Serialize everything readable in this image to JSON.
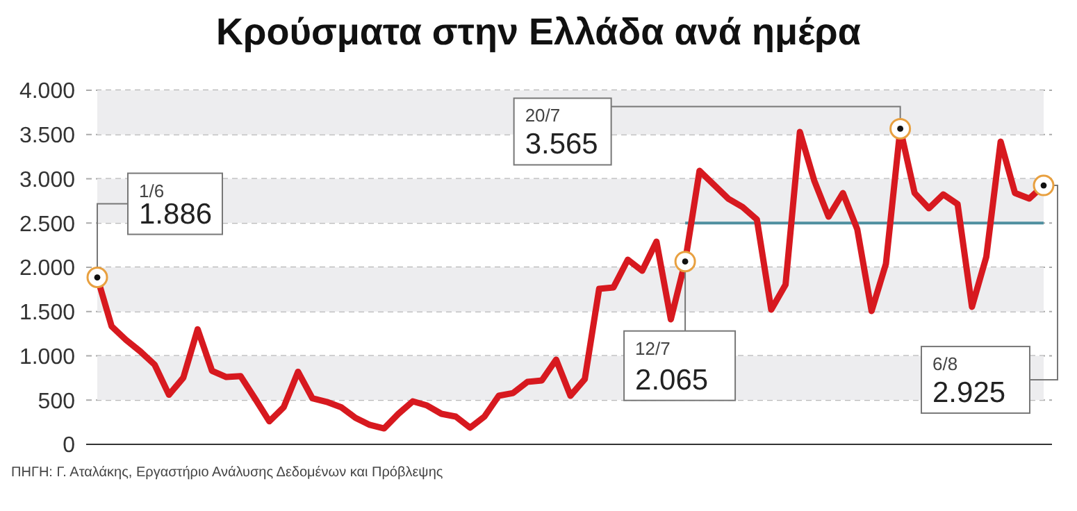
{
  "chart_data": {
    "type": "line",
    "title": "Κρούσματα στην Ελλάδα ανά ημέρα",
    "categories": [
      null,
      null,
      null,
      null,
      null,
      null,
      null,
      null,
      null,
      null,
      null,
      null,
      null,
      null,
      null,
      null,
      null,
      null,
      null,
      null,
      null,
      null,
      null,
      null,
      null,
      null,
      null,
      null,
      null,
      null,
      null,
      null,
      null,
      null,
      null,
      null,
      null,
      null,
      null,
      null,
      null,
      null,
      null,
      null,
      null,
      null,
      null,
      null,
      null,
      null,
      null,
      null,
      null,
      null,
      null,
      null,
      null,
      null,
      null,
      null,
      null,
      null,
      null,
      null,
      null,
      null,
      null
    ],
    "series": [
      {
        "color": "#d7191f",
        "values": [
          1886,
          1333,
          1180,
          1050,
          900,
          560,
          753,
          1300,
          831,
          760,
          770,
          518,
          260,
          420,
          820,
          520,
          480,
          420,
          300,
          220,
          180,
          345,
          486,
          439,
          345,
          314,
          188,
          314,
          549,
          580,
          706,
          722,
          957,
          549,
          737,
          1757,
          1773,
          2086,
          1961,
          2290,
          1412,
          2065,
          3090,
          2933,
          2776,
          2682,
          2541,
          1522,
          1804,
          3529,
          2980,
          2572,
          2839,
          2431,
          1506,
          2039,
          3565,
          2839,
          2666,
          2823,
          2713,
          1553,
          2117,
          3420,
          2839,
          2776,
          2925
        ],
        "value_labels": [
          "1.886",
          null,
          null,
          null,
          null,
          null,
          null,
          null,
          null,
          null,
          null,
          null,
          null,
          null,
          null,
          null,
          null,
          null,
          null,
          null,
          null,
          null,
          null,
          null,
          null,
          null,
          null,
          null,
          null,
          null,
          null,
          null,
          null,
          null,
          null,
          null,
          null,
          null,
          null,
          null,
          null,
          "2.065",
          null,
          null,
          null,
          null,
          null,
          null,
          null,
          null,
          null,
          null,
          null,
          null,
          null,
          null,
          "3.565",
          null,
          null,
          null,
          null,
          null,
          null,
          null,
          null,
          null,
          "2.925"
        ]
      },
      {
        "color": "#4f8fa0",
        "values": [
          null,
          null,
          null,
          null,
          null,
          null,
          null,
          null,
          null,
          null,
          null,
          null,
          null,
          null,
          null,
          null,
          null,
          null,
          null,
          null,
          null,
          null,
          null,
          null,
          null,
          null,
          null,
          null,
          null,
          null,
          null,
          null,
          null,
          null,
          null,
          null,
          null,
          null,
          null,
          null,
          null,
          2500,
          2500,
          2500,
          2500,
          2500,
          2500,
          2500,
          2500,
          2500,
          2500,
          2500,
          2500,
          2500,
          2500,
          2500,
          2500,
          2500,
          2500,
          2500,
          2500,
          2500,
          2500,
          2500,
          2500,
          2500,
          2500
        ]
      }
    ],
    "ylim": [
      0,
      4000
    ],
    "yticks": [
      {
        "value": 0,
        "label": "0"
      },
      {
        "value": 500,
        "label": "500"
      },
      {
        "value": 1000,
        "label": "1.000"
      },
      {
        "value": 1500,
        "label": "1.500"
      },
      {
        "value": 2000,
        "label": "2.000"
      },
      {
        "value": 2500,
        "label": "2.500"
      },
      {
        "value": 3000,
        "label": "3.000"
      },
      {
        "value": 3500,
        "label": "3.500"
      },
      {
        "value": 4000,
        "label": "4.000"
      }
    ],
    "bands": [
      {
        "axis": "y",
        "from": 3500,
        "to": 4000,
        "color": "#ededef"
      },
      {
        "axis": "y",
        "from": 2500,
        "to": 3000,
        "color": "#ededef"
      },
      {
        "axis": "y",
        "from": 1500,
        "to": 2000,
        "color": "#ededef"
      },
      {
        "axis": "y",
        "from": 500,
        "to": 1000,
        "color": "#ededef"
      }
    ],
    "grid": "y",
    "tick_labels": "y",
    "marker": "none",
    "line_style": "solid",
    "annotations": [
      "1/6",
      "12/7",
      "20/7",
      "6/8",
      "ΠΗΓΗ: Γ. Αταλάκης, Εργαστήριο Ανάλυσης Δεδομένων και Πρόβλεψης"
    ]
  }
}
